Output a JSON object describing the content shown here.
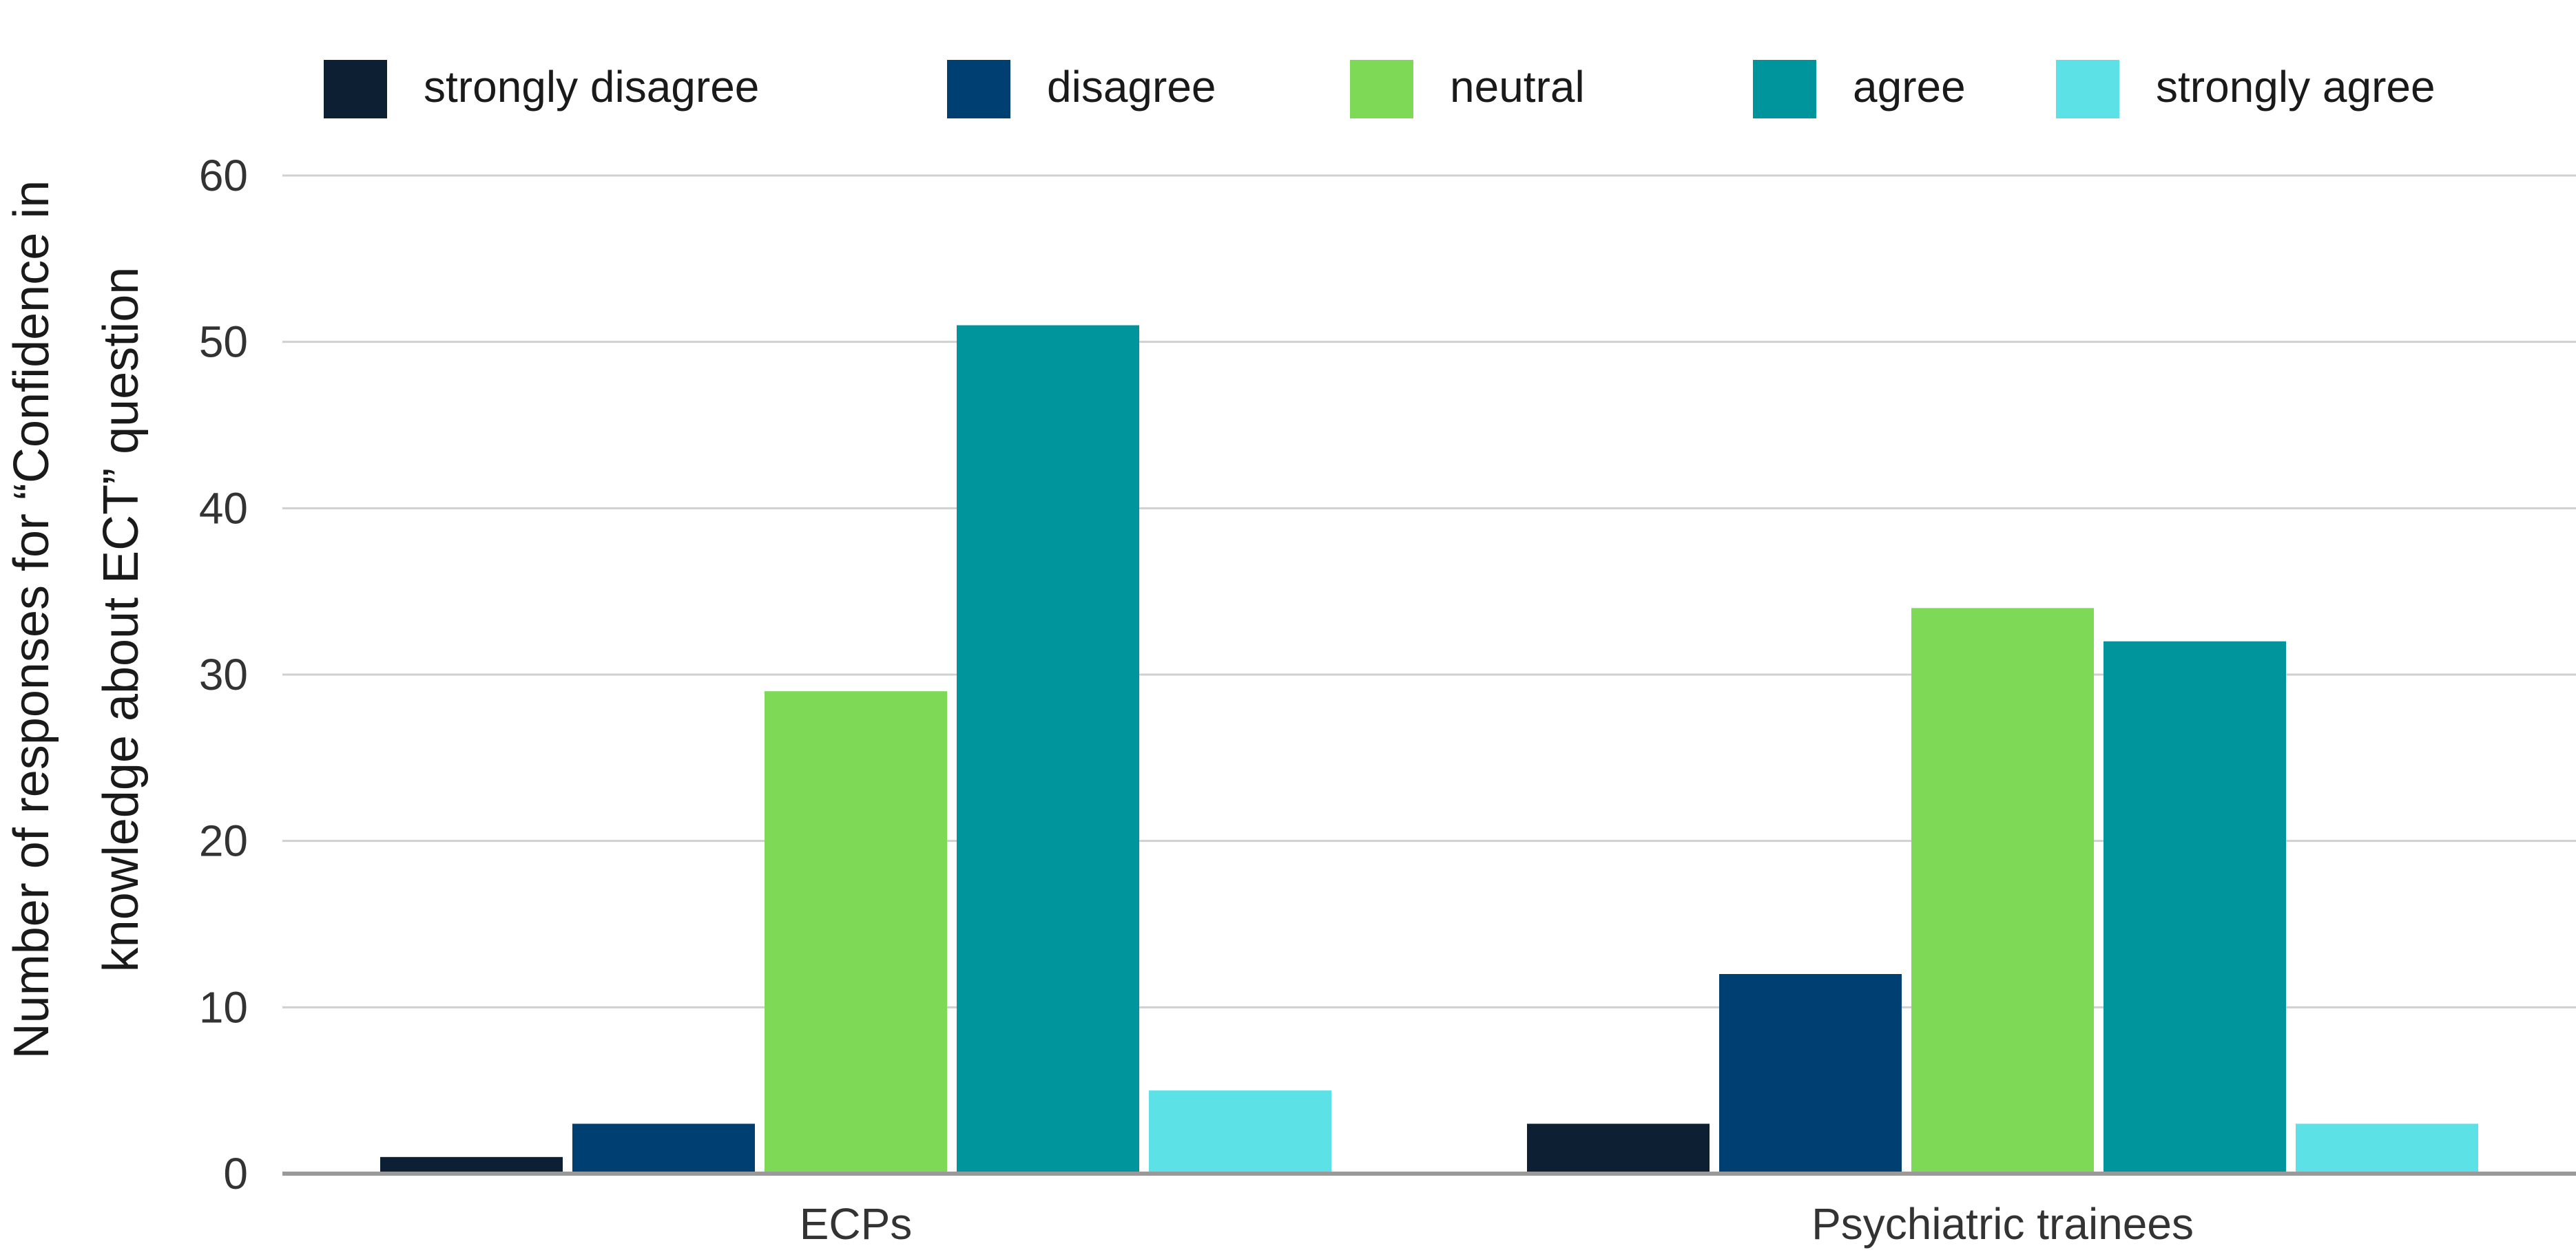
{
  "chart_data": {
    "type": "bar",
    "title": "",
    "xlabel": "",
    "ylabel": "Number of responses for “Confidence in knowledge about ECT”  question",
    "ylabel_lines": [
      "Number of responses for “Confidence in",
      "knowledge about ECT”  question"
    ],
    "categories": [
      "ECPs",
      "Psychiatric trainees"
    ],
    "series": [
      {
        "name": "strongly disagree",
        "color": "#0d2033",
        "values": [
          1,
          3
        ]
      },
      {
        "name": "disagree",
        "color": "#003f72",
        "values": [
          3,
          12
        ]
      },
      {
        "name": "neutral",
        "color": "#7ed957",
        "values": [
          29,
          34
        ]
      },
      {
        "name": "agree",
        "color": "#00949c",
        "values": [
          51,
          32
        ]
      },
      {
        "name": "strongly agree",
        "color": "#5ce1e6",
        "values": [
          5,
          3
        ]
      }
    ],
    "ylim": [
      0,
      60
    ],
    "yticks": [
      0,
      10,
      20,
      30,
      40,
      50,
      60
    ],
    "grid": true,
    "legend_position": "top"
  }
}
